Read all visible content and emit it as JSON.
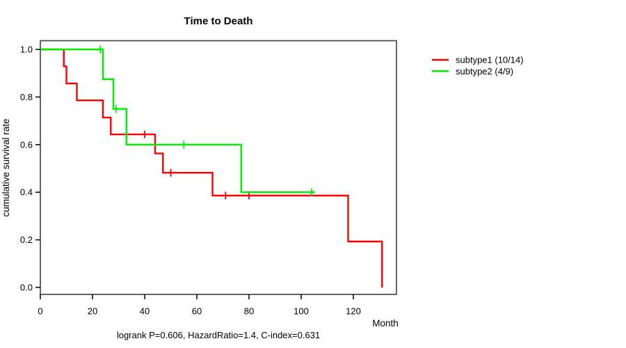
{
  "chart_data": {
    "type": "line",
    "variant": "kaplan-meier-survival-step",
    "title": "Time to Death",
    "xlabel": "Month",
    "ylabel": "cumulative survival rate",
    "footnote": "logrank P=0.606, HazardRatio=1.4, C-index=0.631",
    "xlim": [
      0,
      136
    ],
    "ylim": [
      0.0,
      1.0
    ],
    "xticks": [
      0,
      20,
      40,
      60,
      80,
      100,
      120
    ],
    "yticks": [
      {
        "v": 0.0,
        "label": "0.0"
      },
      {
        "v": 0.2,
        "label": "0.2"
      },
      {
        "v": 0.4,
        "label": "0.4"
      },
      {
        "v": 0.6,
        "label": "0.6"
      },
      {
        "v": 0.8,
        "label": "0.8"
      },
      {
        "v": 1.0,
        "label": "1.0"
      }
    ],
    "grid": false,
    "legend_position": "right-outside",
    "axis_color": "#000000",
    "box_color": "#4a4a4a",
    "series": [
      {
        "name": "subtype1 (10/14)",
        "color": "#ff0000",
        "n_total": 14,
        "n_events": 10,
        "steps": [
          [
            0,
            1.0
          ],
          [
            9,
            0.929
          ],
          [
            10,
            0.857
          ],
          [
            14,
            0.786
          ],
          [
            24,
            0.714
          ],
          [
            27,
            0.643
          ],
          [
            44,
            0.563
          ],
          [
            47,
            0.482
          ],
          [
            66,
            0.386
          ],
          [
            118,
            0.193
          ],
          [
            131,
            0.0
          ]
        ],
        "censors": [
          [
            40,
            0.643
          ],
          [
            50,
            0.482
          ],
          [
            71,
            0.386
          ],
          [
            80,
            0.386
          ]
        ],
        "end_month": 131
      },
      {
        "name": "subtype2 (4/9)",
        "color": "#00f000",
        "n_total": 9,
        "n_events": 4,
        "steps": [
          [
            0,
            1.0
          ],
          [
            24,
            0.875
          ],
          [
            28,
            0.75
          ],
          [
            33,
            0.6
          ],
          [
            77,
            0.4
          ]
        ],
        "censors": [
          [
            23,
            1.0
          ],
          [
            29,
            0.75
          ],
          [
            55,
            0.6
          ],
          [
            104,
            0.4
          ]
        ],
        "end_month": 105
      }
    ]
  }
}
